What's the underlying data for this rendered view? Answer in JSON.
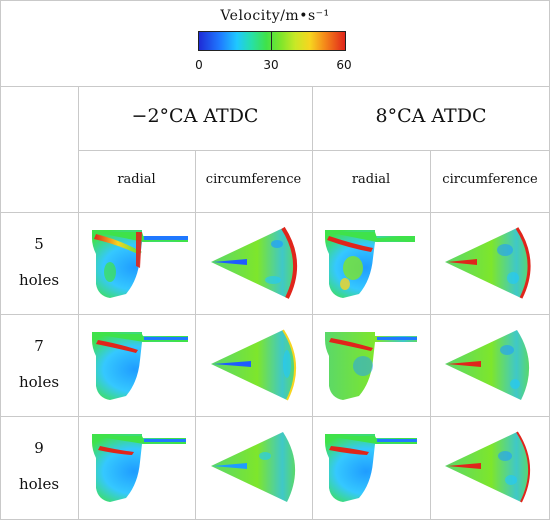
{
  "colorbar": {
    "title": "Velocity/m•s⁻¹",
    "ticks": [
      "0",
      "30",
      "60"
    ]
  },
  "columns": {
    "group_left": "−2°CA ATDC",
    "group_right": "8°CA ATDC",
    "sub": [
      "radial",
      "circumference",
      "radial",
      "circumference"
    ]
  },
  "rows": [
    {
      "num": "5",
      "unit": "holes"
    },
    {
      "num": "7",
      "unit": "holes"
    },
    {
      "num": "9",
      "unit": "holes"
    }
  ],
  "colors": {
    "low": "#1e2bd6",
    "mid": "#3fe24a",
    "high": "#e0251b",
    "grid": "#c9c9c9"
  }
}
